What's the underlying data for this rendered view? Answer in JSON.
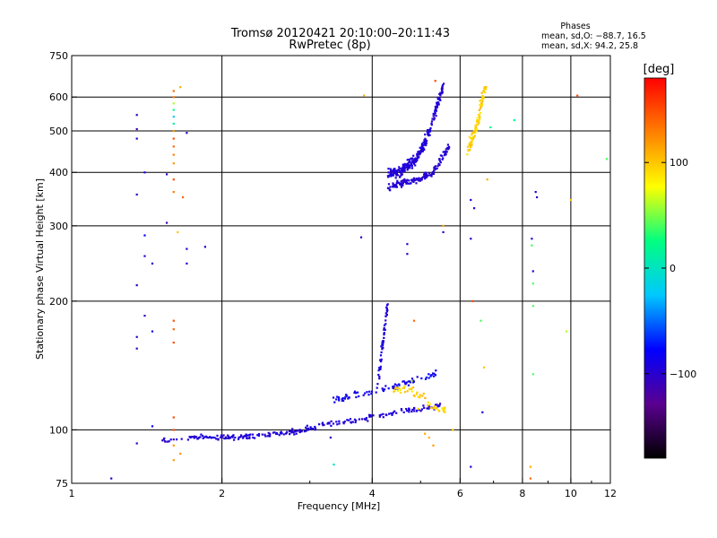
{
  "chart_data": {
    "type": "scatter",
    "title": "Tromsø 20120421 20:10:00–20:11:43",
    "subtitle": "RwPretec (8p)",
    "xlabel": "Frequency [MHz]",
    "ylabel": "Stationary phase Virtual Height [km]",
    "x_scale": "log",
    "y_scale": "log",
    "xlim": [
      1,
      12
    ],
    "ylim": [
      75,
      750
    ],
    "x_ticks": [
      1,
      2,
      4,
      6,
      8,
      10,
      12
    ],
    "x_tick_labels": [
      "1",
      "2",
      "4",
      "6",
      "8",
      "10",
      "12"
    ],
    "y_ticks": [
      75,
      100,
      200,
      300,
      400,
      500,
      600,
      750
    ],
    "y_tick_labels": [
      "75",
      "100",
      "200",
      "300",
      "400",
      "500",
      "600",
      "750"
    ],
    "grid": true,
    "stats": {
      "heading": "Phases",
      "line_o": "mean, sd,O: −88.7, 16.5",
      "line_x": "mean, sd,X:  94.2, 25.8"
    },
    "colorbar": {
      "unit_label": "[deg]",
      "range": [
        -180,
        180
      ],
      "ticks": [
        100,
        0,
        -100
      ],
      "tick_labels": [
        "100",
        "0",
        "−100"
      ],
      "colors": [
        "#000000",
        "#5a0090",
        "#0000ff",
        "#00c8ff",
        "#00ff80",
        "#ffff00",
        "#ff8000",
        "#ff0000"
      ]
    },
    "series": [
      {
        "kind": "band",
        "note": "E-layer trace",
        "phase": -95,
        "phase_spread": 15,
        "points": [
          [
            1.5,
            94
          ],
          [
            1.8,
            96
          ],
          [
            2.0,
            96
          ],
          [
            2.4,
            97
          ],
          [
            2.8,
            99
          ],
          [
            3.2,
            103
          ],
          [
            3.6,
            105
          ],
          [
            4.0,
            107
          ],
          [
            4.5,
            110
          ],
          [
            5.0,
            112
          ],
          [
            5.5,
            114
          ]
        ],
        "height_spread": 0.022,
        "count": 240
      },
      {
        "kind": "band",
        "note": "E-layer upper trace",
        "phase": -85,
        "phase_spread": 20,
        "points": [
          [
            3.3,
            117
          ],
          [
            3.6,
            120
          ],
          [
            3.9,
            122
          ],
          [
            4.2,
            124
          ],
          [
            4.6,
            128
          ],
          [
            5.0,
            132
          ],
          [
            5.5,
            137
          ]
        ],
        "height_spread": 0.03,
        "count": 80
      },
      {
        "kind": "band",
        "note": "Es rise",
        "phase": -95,
        "phase_spread": 15,
        "points": [
          [
            4.1,
            125
          ],
          [
            4.15,
            140
          ],
          [
            4.2,
            160
          ],
          [
            4.25,
            180
          ],
          [
            4.3,
            195
          ]
        ],
        "height_spread": 0.04,
        "count": 50
      },
      {
        "kind": "band",
        "note": "F-layer lower edge",
        "phase": -98,
        "phase_spread": 12,
        "points": [
          [
            4.3,
            372
          ],
          [
            4.6,
            378
          ],
          [
            5.0,
            385
          ],
          [
            5.3,
            400
          ],
          [
            5.5,
            430
          ],
          [
            5.7,
            460
          ]
        ],
        "height_spread": 0.03,
        "count": 130
      },
      {
        "kind": "band",
        "note": "F-layer O trace",
        "phase": -95,
        "phase_spread": 15,
        "points": [
          [
            4.3,
            395
          ],
          [
            4.6,
            405
          ],
          [
            4.9,
            430
          ],
          [
            5.1,
            470
          ],
          [
            5.3,
            530
          ],
          [
            5.45,
            600
          ],
          [
            5.55,
            640
          ]
        ],
        "height_spread": 0.04,
        "count": 260
      },
      {
        "kind": "band",
        "note": "F-layer X trace",
        "phase": 95,
        "phase_spread": 22,
        "points": [
          [
            6.2,
            450
          ],
          [
            6.4,
            490
          ],
          [
            6.55,
            540
          ],
          [
            6.65,
            600
          ],
          [
            6.75,
            640
          ]
        ],
        "height_spread": 0.045,
        "count": 90
      },
      {
        "kind": "band",
        "note": "E-layer X trace",
        "phase": 95,
        "phase_spread": 22,
        "points": [
          [
            4.4,
            123
          ],
          [
            4.7,
            126
          ],
          [
            5.0,
            120
          ],
          [
            5.3,
            112
          ],
          [
            5.6,
            112
          ]
        ],
        "height_spread": 0.035,
        "count": 45
      },
      {
        "kind": "points",
        "points": [
          [
            1.35,
            545,
            -100
          ],
          [
            1.35,
            505,
            -110
          ],
          [
            1.35,
            480,
            -100
          ],
          [
            1.4,
            400,
            -90
          ],
          [
            1.35,
            355,
            -100
          ],
          [
            1.4,
            285,
            -80
          ],
          [
            1.4,
            255,
            -100
          ],
          [
            1.45,
            245,
            -90
          ],
          [
            1.35,
            218,
            -100
          ],
          [
            1.4,
            185,
            -110
          ],
          [
            1.35,
            165,
            -100
          ],
          [
            1.35,
            155,
            -105
          ],
          [
            1.45,
            170,
            -90
          ],
          [
            1.45,
            102,
            -80
          ],
          [
            1.35,
            93,
            -100
          ],
          [
            1.55,
            396,
            -100
          ],
          [
            1.55,
            305,
            -110
          ],
          [
            1.6,
            95,
            -110
          ],
          [
            1.7,
            495,
            -100
          ],
          [
            1.7,
            265,
            -100
          ],
          [
            1.7,
            245,
            -100
          ],
          [
            1.85,
            268,
            -100
          ],
          [
            1.65,
            88,
            120
          ],
          [
            1.6,
            620,
            140
          ],
          [
            1.6,
            600,
            130
          ],
          [
            1.6,
            580,
            60
          ],
          [
            1.6,
            560,
            20
          ],
          [
            1.6,
            540,
            -20
          ],
          [
            1.6,
            520,
            10
          ],
          [
            1.6,
            500,
            120
          ],
          [
            1.6,
            480,
            150
          ],
          [
            1.6,
            460,
            140
          ],
          [
            1.6,
            440,
            130
          ],
          [
            1.6,
            420,
            120
          ],
          [
            1.6,
            385,
            150
          ],
          [
            1.6,
            360,
            130
          ],
          [
            1.6,
            180,
            150
          ],
          [
            1.6,
            172,
            140
          ],
          [
            1.6,
            160,
            150
          ],
          [
            1.6,
            107,
            150
          ],
          [
            1.6,
            100,
            150
          ],
          [
            1.6,
            92,
            120
          ],
          [
            1.6,
            85,
            120
          ],
          [
            1.65,
            633,
            110
          ],
          [
            1.63,
            290,
            100
          ],
          [
            1.67,
            350,
            140
          ],
          [
            1.2,
            77,
            -100
          ],
          [
            3.35,
            83,
            0
          ],
          [
            3.3,
            96,
            -100
          ],
          [
            3.8,
            282,
            -100
          ],
          [
            3.85,
            605,
            110
          ],
          [
            4.7,
            272,
            -100
          ],
          [
            4.7,
            258,
            -100
          ],
          [
            4.85,
            180,
            140
          ],
          [
            5.2,
            96,
            110
          ],
          [
            5.3,
            92,
            120
          ],
          [
            5.55,
            300,
            110
          ],
          [
            5.55,
            290,
            -100
          ],
          [
            5.35,
            655,
            150
          ],
          [
            5.8,
            100,
            100
          ],
          [
            5.1,
            98,
            110
          ],
          [
            4.95,
            112,
            100
          ],
          [
            4.8,
            130,
            60
          ],
          [
            6.3,
            280,
            -100
          ],
          [
            6.35,
            200,
            150
          ],
          [
            6.6,
            180,
            40
          ],
          [
            6.65,
            110,
            -90
          ],
          [
            6.7,
            140,
            100
          ],
          [
            6.3,
            82,
            -100
          ],
          [
            6.8,
            385,
            110
          ],
          [
            6.9,
            510,
            20
          ],
          [
            6.3,
            345,
            -100
          ],
          [
            6.4,
            330,
            -100
          ],
          [
            7.7,
            530,
            20
          ],
          [
            8.35,
            280,
            -100
          ],
          [
            8.35,
            270,
            40
          ],
          [
            8.4,
            235,
            -100
          ],
          [
            8.4,
            220,
            40
          ],
          [
            8.5,
            360,
            -100
          ],
          [
            8.55,
            350,
            -100
          ],
          [
            8.4,
            195,
            40
          ],
          [
            8.4,
            135,
            40
          ],
          [
            8.3,
            82,
            110
          ],
          [
            8.3,
            77,
            140
          ],
          [
            10.0,
            345,
            100
          ],
          [
            10.3,
            605,
            150
          ],
          [
            9.8,
            170,
            60
          ],
          [
            11.8,
            430,
            40
          ]
        ]
      }
    ]
  }
}
